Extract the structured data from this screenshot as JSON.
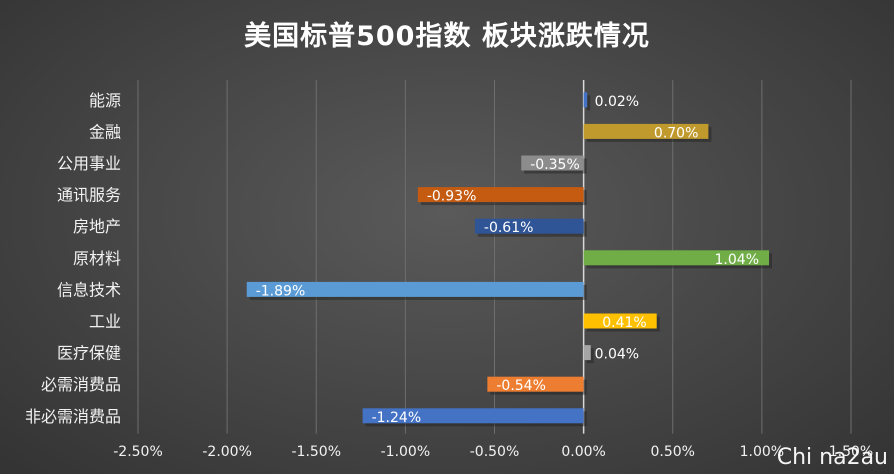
{
  "chart_data": {
    "type": "bar",
    "orientation": "horizontal",
    "title": "美国标普500指数 板块涨跌情况",
    "categories": [
      "能源",
      "金融",
      "公用事业",
      "通讯服务",
      "房地产",
      "原材料",
      "信息技术",
      "工业",
      "医疗保健",
      "必需消费品",
      "非必需消费品"
    ],
    "values": [
      0.02,
      0.7,
      -0.35,
      -0.93,
      -0.61,
      1.04,
      -1.89,
      0.41,
      0.04,
      -0.54,
      -1.24
    ],
    "value_labels": [
      "0.02%",
      "0.70%",
      "-0.35%",
      "-0.93%",
      "-0.61%",
      "1.04%",
      "-1.89%",
      "0.41%",
      "0.04%",
      "-0.54%",
      "-1.24%"
    ],
    "colors": [
      "#4472c4",
      "#c09a2c",
      "#8c8c8c",
      "#c55a11",
      "#2f5597",
      "#70ad47",
      "#5b9bd5",
      "#ffc000",
      "#a5a5a5",
      "#ed7d31",
      "#4472c4"
    ],
    "xlim": [
      -2.5,
      1.5
    ],
    "x_ticks": [
      -2.5,
      -2.0,
      -1.5,
      -1.0,
      -0.5,
      0.0,
      0.5,
      1.0,
      1.5
    ],
    "x_tick_labels": [
      "-2.50%",
      "-2.00%",
      "-1.50%",
      "-1.00%",
      "-0.50%",
      "0.00%",
      "0.50%",
      "1.00%",
      "1.50%"
    ],
    "grid": true,
    "legend": "none"
  },
  "watermark": "Chi na2au"
}
